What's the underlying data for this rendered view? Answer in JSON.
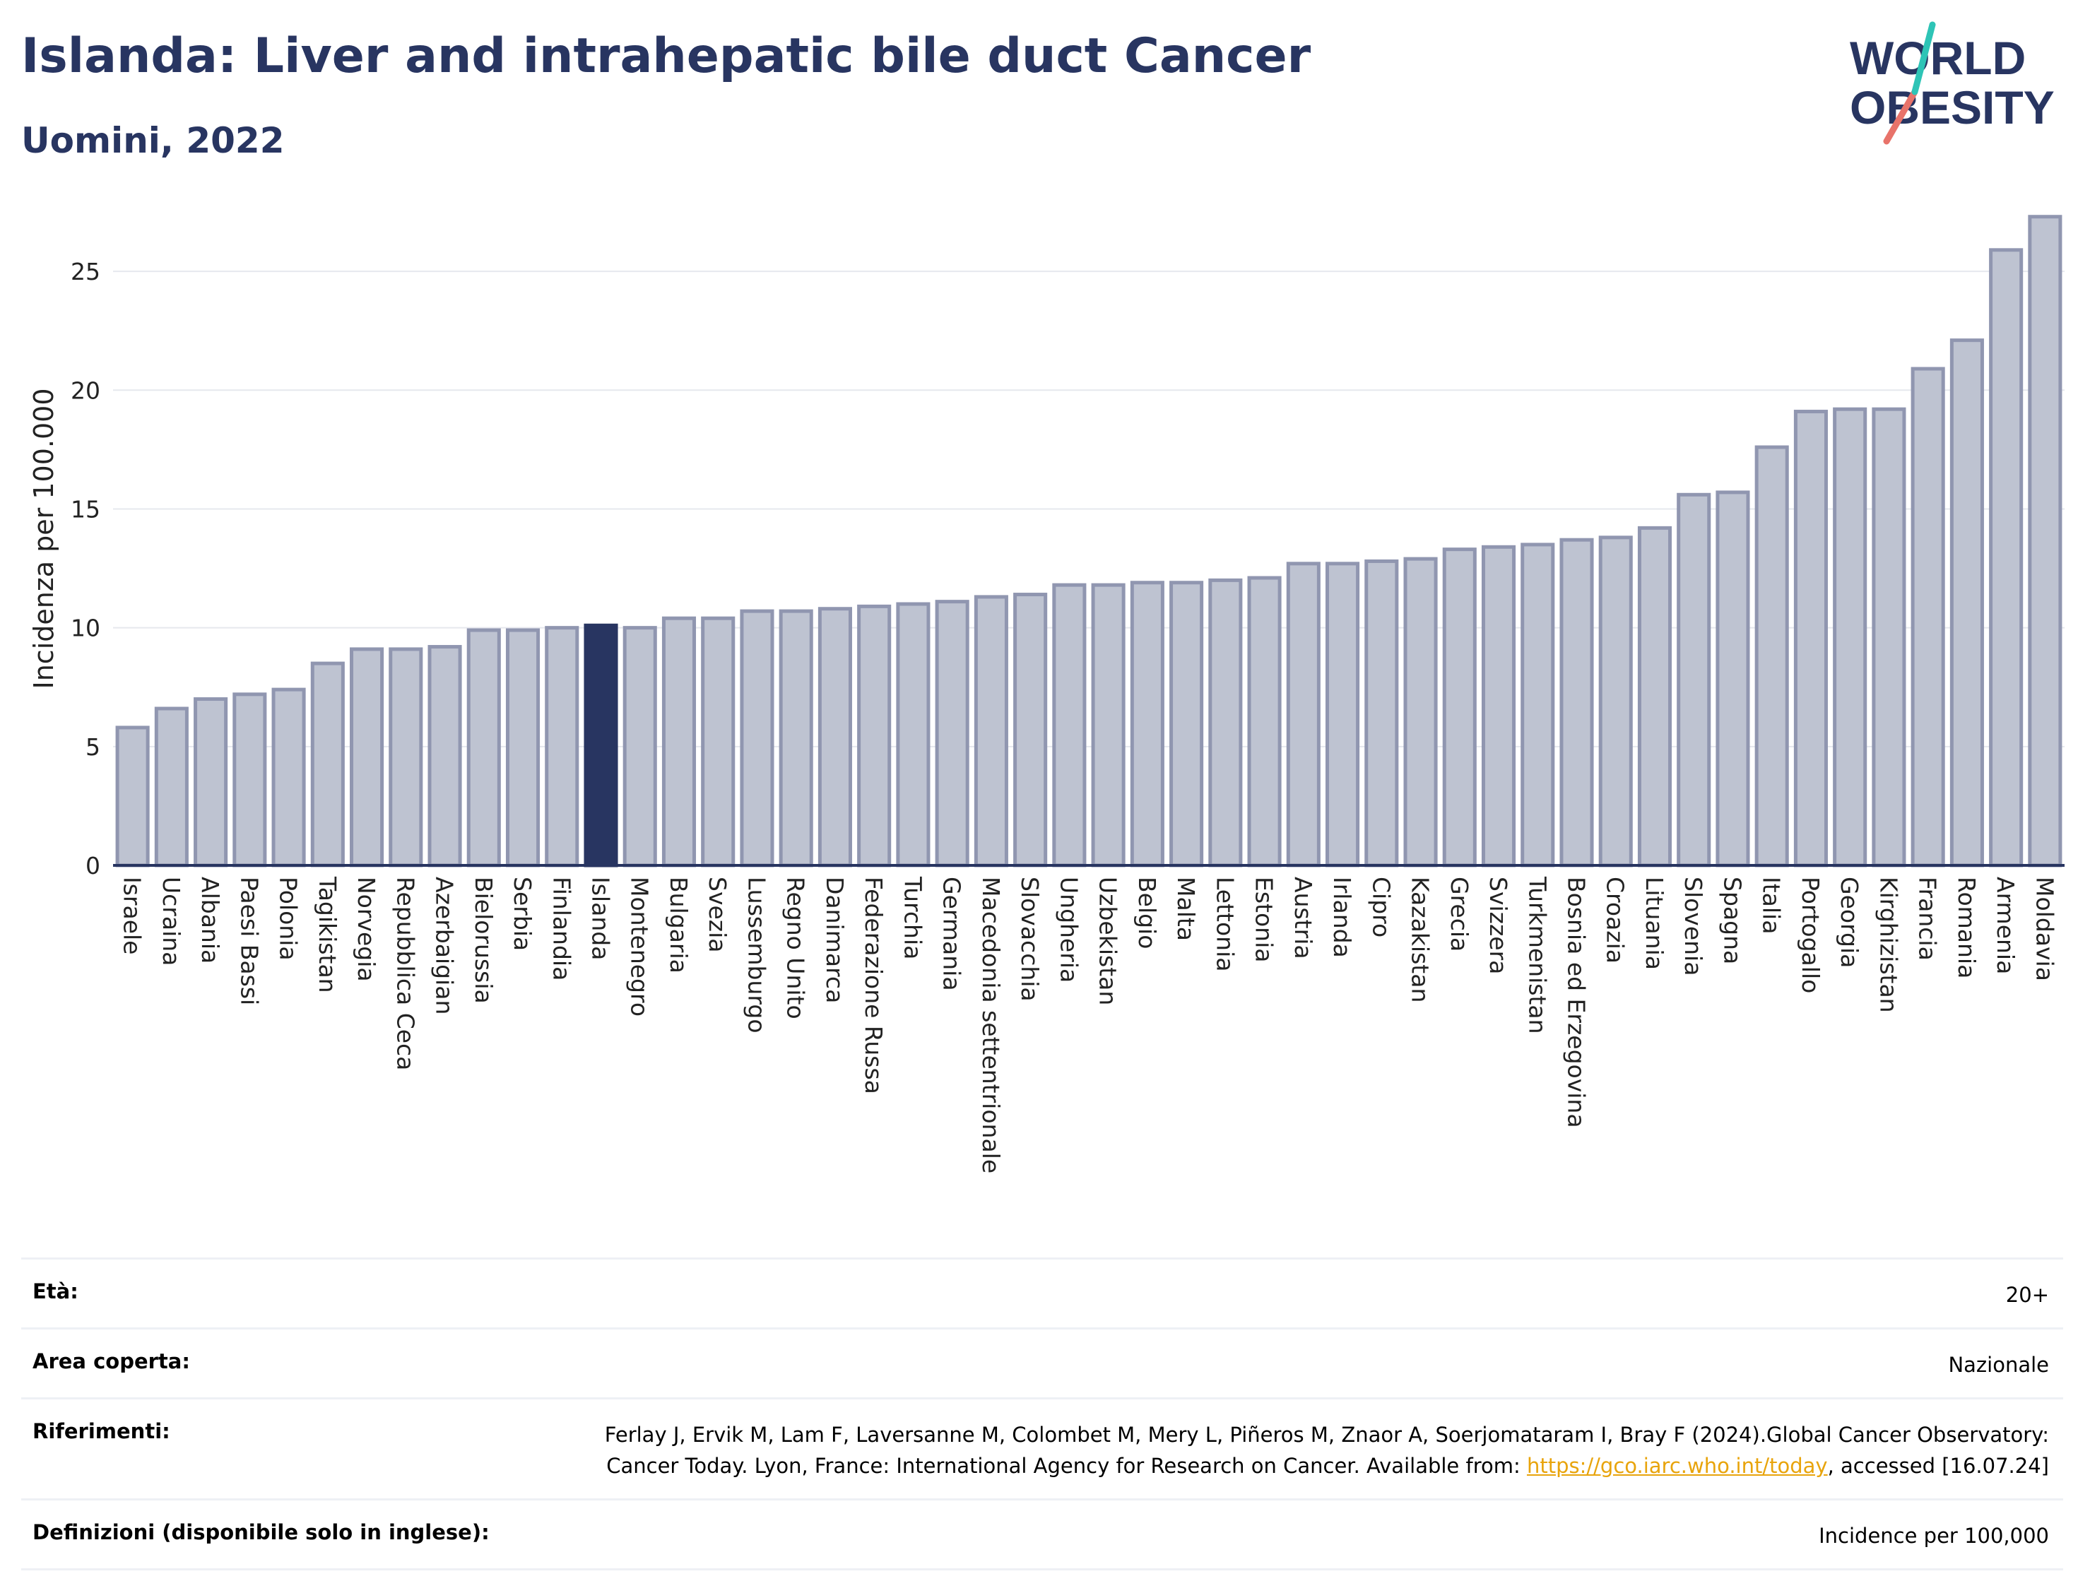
{
  "header": {
    "title": "Islanda: Liver and intrahepatic bile duct Cancer",
    "subtitle": "Uomini, 2022"
  },
  "logo": {
    "line1": "WORLD",
    "line2": "OBESITY"
  },
  "colors": {
    "highlight": "#283561",
    "bar": "#bec3d1",
    "bar_edge": "#9096b0",
    "accent_teal": "#2ec4b6",
    "accent_red": "#e8736a"
  },
  "chart_data": {
    "type": "bar",
    "ylabel": "Incidenza per 100.000",
    "ylim": [
      0,
      27.5
    ],
    "yticks": [
      0,
      5,
      10,
      15,
      20,
      25
    ],
    "highlight": "Islanda",
    "categories": [
      "Israele",
      "Ucraina",
      "Albania",
      "Paesi Bassi",
      "Polonia",
      "Tagikistan",
      "Norvegia",
      "Repubblica Ceca",
      "Azerbaigian",
      "Bielorussia",
      "Serbia",
      "Finlandia",
      "Islanda",
      "Montenegro",
      "Bulgaria",
      "Svezia",
      "Lussemburgo",
      "Regno Unito",
      "Danimarca",
      "Federazione Russa",
      "Turchia",
      "Germania",
      "Macedonia settentrionale",
      "Slovacchia",
      "Ungheria",
      "Uzbekistan",
      "Belgio",
      "Malta",
      "Lettonia",
      "Estonia",
      "Austria",
      "Irlanda",
      "Cipro",
      "Kazakistan",
      "Grecia",
      "Svizzera",
      "Turkmenistan",
      "Bosnia ed Erzegovina",
      "Croazia",
      "Lituania",
      "Slovenia",
      "Spagna",
      "Italia",
      "Portogallo",
      "Georgia",
      "Kirghizistan",
      "Francia",
      "Romania",
      "Armenia",
      "Moldavia"
    ],
    "values": [
      5.8,
      6.6,
      7.0,
      7.2,
      7.4,
      8.5,
      9.1,
      9.1,
      9.2,
      9.9,
      9.9,
      10.0,
      10.1,
      10.0,
      10.4,
      10.4,
      10.7,
      10.7,
      10.8,
      10.9,
      11.0,
      11.1,
      11.3,
      11.4,
      11.8,
      11.8,
      11.9,
      11.9,
      12.0,
      12.1,
      12.7,
      12.7,
      12.8,
      12.9,
      13.3,
      13.4,
      13.5,
      13.7,
      13.8,
      14.2,
      15.6,
      15.7,
      17.6,
      19.1,
      19.2,
      19.2,
      20.9,
      22.1,
      25.9,
      27.3
    ]
  },
  "info": {
    "age": {
      "label": "Età:",
      "value": "20+"
    },
    "area": {
      "label": "Area coperta:",
      "value": "Nazionale"
    },
    "refs": {
      "label": "Riferimenti:",
      "text1": "Ferlay J, Ervik M, Lam F, Laversanne M, Colombet M, Mery L, Piñeros M, Znaor A, Soerjomataram I, Bray F (2024).Global Cancer Observatory: Cancer Today. Lyon, France: International Agency for Research on Cancer. Available from: ",
      "link": "https://gco.iarc.who.int/today",
      "text2": ", accessed [16.07.24]"
    },
    "defs": {
      "label": "Definizioni (disponibile solo in inglese):",
      "value": "Incidence per 100,000"
    }
  }
}
